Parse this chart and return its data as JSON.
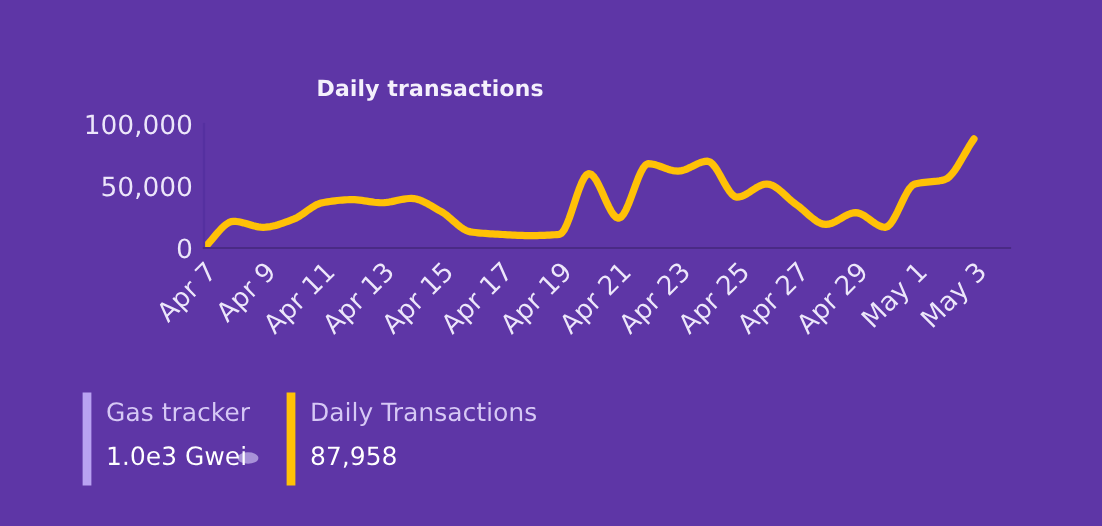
{
  "chart_data": {
    "type": "line",
    "title": "Daily transactions",
    "categories": [
      "Apr 7",
      null,
      "Apr 9",
      null,
      "Apr 11",
      null,
      "Apr 13",
      null,
      "Apr 15",
      null,
      "Apr 17",
      null,
      "Apr 19",
      null,
      "Apr 21",
      null,
      "Apr 23",
      null,
      "Apr 25",
      null,
      "Apr 27",
      null,
      "Apr 29",
      null,
      "May 1",
      null,
      "May 3"
    ],
    "series": [
      {
        "color": "#ffc107",
        "values": [
          0,
          21500,
          16700,
          23000,
          36500,
          39000,
          36500,
          40000,
          29500,
          13000,
          11000,
          10000,
          11000,
          60000,
          24000,
          68000,
          62000,
          70000,
          41000,
          51600,
          35000,
          19000,
          28500,
          16700,
          51600,
          55000,
          88000
        ]
      }
    ],
    "ylim": [
      0,
      100000
    ],
    "yticks": [
      {
        "value": 0,
        "label": "0"
      },
      {
        "value": 50000,
        "label": "50,000"
      },
      {
        "value": 100000,
        "label": "100,000"
      }
    ],
    "grid": false,
    "legend": false,
    "marker": "none",
    "line_style": "solid",
    "annotations": [
      "Gas tracker",
      "1.0e3 Gwei",
      "Daily Transactions",
      "87,958"
    ]
  }
}
